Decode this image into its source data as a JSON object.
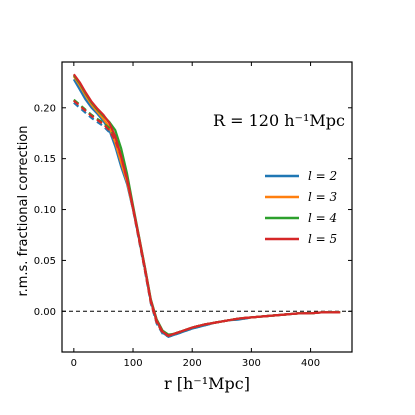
{
  "chart_data": {
    "type": "line",
    "xlabel": "r [h⁻¹Mpc]",
    "ylabel": "r.m.s. fractional correction",
    "xlim": [
      -20,
      470
    ],
    "ylim": [
      -0.04,
      0.245
    ],
    "xticks": [
      0,
      100,
      200,
      300,
      400
    ],
    "yticks": [
      0.0,
      0.05,
      0.1,
      0.15,
      0.2
    ],
    "ytick_labels": [
      "0.00",
      "0.05",
      "0.10",
      "0.15",
      "0.20"
    ],
    "xtick_labels": [
      "0",
      "100",
      "200",
      "300",
      "400"
    ],
    "reference_line": {
      "y": 0.0,
      "style": "dashed"
    },
    "annotation": "R = 120 h⁻¹Mpc",
    "legend_placement": "center-right",
    "series": [
      {
        "name": "l = 2",
        "color": "#1f77b4",
        "x": [
          0,
          10,
          20,
          30,
          40,
          50,
          60,
          70,
          80,
          90,
          100,
          110,
          120,
          130,
          140,
          150,
          160,
          170,
          180,
          190,
          200,
          220,
          240,
          260,
          280,
          300,
          320,
          340,
          360,
          380,
          400,
          420,
          450
        ],
        "y_solid": [
          0.228,
          0.218,
          0.208,
          0.2,
          0.194,
          0.187,
          0.178,
          0.162,
          0.142,
          0.125,
          0.1,
          0.072,
          0.042,
          0.01,
          -0.01,
          -0.021,
          -0.025,
          -0.023,
          -0.021,
          -0.019,
          -0.017,
          -0.014,
          -0.011,
          -0.009,
          -0.008,
          -0.006,
          -0.005,
          -0.004,
          -0.003,
          -0.002,
          -0.002,
          -0.001,
          -0.001
        ],
        "y_dashed": [
          0.205,
          0.2,
          0.195,
          0.19,
          0.186,
          0.182,
          0.176,
          0.166,
          0.15,
          0.128,
          0.1,
          0.07,
          0.04,
          0.008,
          -0.012,
          -0.022,
          -0.025,
          -0.023,
          -0.021,
          -0.019,
          -0.017,
          -0.014,
          -0.011,
          -0.009,
          -0.008,
          -0.006,
          -0.005,
          -0.004,
          -0.003,
          -0.002,
          -0.002,
          -0.001,
          -0.001
        ]
      },
      {
        "name": "l = 3",
        "color": "#ff7f0e",
        "x": [
          0,
          10,
          20,
          30,
          40,
          50,
          60,
          70,
          80,
          90,
          100,
          110,
          120,
          130,
          140,
          150,
          160,
          170,
          180,
          190,
          200,
          220,
          240,
          260,
          280,
          300,
          320,
          340,
          360,
          380,
          400,
          420,
          450
        ],
        "y_solid": [
          0.231,
          0.222,
          0.212,
          0.203,
          0.196,
          0.189,
          0.181,
          0.166,
          0.146,
          0.127,
          0.101,
          0.073,
          0.043,
          0.011,
          -0.009,
          -0.02,
          -0.024,
          -0.022,
          -0.02,
          -0.018,
          -0.016,
          -0.013,
          -0.011,
          -0.009,
          -0.007,
          -0.006,
          -0.005,
          -0.004,
          -0.003,
          -0.002,
          -0.002,
          -0.001,
          -0.001
        ],
        "y_dashed": [
          0.207,
          0.202,
          0.197,
          0.192,
          0.188,
          0.184,
          0.178,
          0.168,
          0.151,
          0.129,
          0.101,
          0.071,
          0.041,
          0.009,
          -0.011,
          -0.021,
          -0.024,
          -0.022,
          -0.02,
          -0.018,
          -0.016,
          -0.013,
          -0.011,
          -0.009,
          -0.007,
          -0.006,
          -0.005,
          -0.004,
          -0.003,
          -0.002,
          -0.002,
          -0.001,
          -0.001
        ]
      },
      {
        "name": "l = 4",
        "color": "#2ca02c",
        "x": [
          0,
          10,
          20,
          30,
          40,
          50,
          60,
          70,
          80,
          90,
          100,
          110,
          120,
          130,
          140,
          150,
          160,
          170,
          180,
          190,
          200,
          220,
          240,
          260,
          280,
          300,
          320,
          340,
          360,
          380,
          400,
          420,
          450
        ],
        "y_solid": [
          0.232,
          0.224,
          0.214,
          0.205,
          0.198,
          0.192,
          0.186,
          0.178,
          0.16,
          0.135,
          0.104,
          0.074,
          0.044,
          0.012,
          -0.008,
          -0.019,
          -0.023,
          -0.022,
          -0.02,
          -0.018,
          -0.016,
          -0.013,
          -0.011,
          -0.009,
          -0.007,
          -0.006,
          -0.005,
          -0.004,
          -0.003,
          -0.002,
          -0.002,
          -0.001,
          -0.001
        ],
        "y_dashed": [
          0.208,
          0.203,
          0.198,
          0.193,
          0.189,
          0.185,
          0.18,
          0.172,
          0.156,
          0.132,
          0.102,
          0.072,
          0.042,
          0.01,
          -0.01,
          -0.02,
          -0.023,
          -0.022,
          -0.02,
          -0.018,
          -0.016,
          -0.013,
          -0.011,
          -0.009,
          -0.007,
          -0.006,
          -0.005,
          -0.004,
          -0.003,
          -0.002,
          -0.002,
          -0.001,
          -0.001
        ]
      },
      {
        "name": "l = 5",
        "color": "#d62728",
        "x": [
          0,
          10,
          20,
          30,
          40,
          50,
          60,
          70,
          80,
          90,
          100,
          110,
          120,
          130,
          140,
          150,
          160,
          170,
          180,
          190,
          200,
          220,
          240,
          260,
          280,
          300,
          320,
          340,
          360,
          380,
          400,
          420,
          450
        ],
        "y_solid": [
          0.233,
          0.225,
          0.215,
          0.206,
          0.199,
          0.193,
          0.185,
          0.172,
          0.152,
          0.13,
          0.102,
          0.073,
          0.043,
          0.011,
          -0.009,
          -0.02,
          -0.024,
          -0.022,
          -0.02,
          -0.018,
          -0.016,
          -0.013,
          -0.011,
          -0.009,
          -0.007,
          -0.006,
          -0.005,
          -0.004,
          -0.003,
          -0.002,
          -0.002,
          -0.001,
          -0.001
        ],
        "y_dashed": [
          0.207,
          0.202,
          0.197,
          0.192,
          0.188,
          0.184,
          0.178,
          0.168,
          0.152,
          0.129,
          0.101,
          0.071,
          0.041,
          0.009,
          -0.011,
          -0.021,
          -0.024,
          -0.022,
          -0.02,
          -0.018,
          -0.016,
          -0.013,
          -0.011,
          -0.009,
          -0.007,
          -0.006,
          -0.005,
          -0.004,
          -0.003,
          -0.002,
          -0.002,
          -0.001,
          -0.001
        ]
      }
    ]
  }
}
